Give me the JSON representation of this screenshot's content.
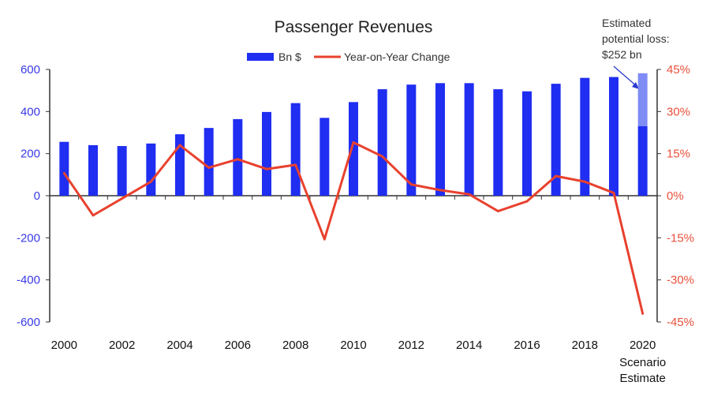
{
  "chart_data": {
    "type": "bar+line",
    "title": "Passenger Revenues",
    "legend_position": "top-center",
    "grid": false,
    "categories": [
      "2000",
      "2001",
      "2002",
      "2003",
      "2004",
      "2005",
      "2006",
      "2007",
      "2008",
      "2009",
      "2010",
      "2011",
      "2012",
      "2013",
      "2014",
      "2015",
      "2016",
      "2017",
      "2018",
      "2019",
      "2020"
    ],
    "x_tick_labels": [
      "2000",
      "2002",
      "2004",
      "2006",
      "2008",
      "2010",
      "2012",
      "2014",
      "2016",
      "2018",
      "2020"
    ],
    "x_extra_label": [
      "Scenario",
      "Estimate"
    ],
    "series": [
      {
        "name": "Bn $",
        "type": "bar",
        "axis": "left",
        "color": "#1f2ef0",
        "values": [
          256,
          240,
          236,
          248,
          292,
          322,
          364,
          398,
          440,
          370,
          445,
          506,
          528,
          535,
          535,
          506,
          496,
          532,
          560,
          564,
          330
        ]
      },
      {
        "name": "Year-on-Year Change",
        "type": "line",
        "axis": "right",
        "color": "#e8412e",
        "values": [
          8,
          -7,
          -1,
          5,
          18,
          10,
          13,
          9.5,
          11,
          -15.5,
          19,
          14,
          4,
          2,
          0.5,
          -5.5,
          -2,
          7,
          5,
          1,
          -42
        ]
      }
    ],
    "estimated_loss": {
      "category": "2020",
      "value": 252,
      "color": "#7f8cf5"
    },
    "annotation": [
      "Estimated",
      "potential loss:",
      "$252 bn"
    ],
    "left_axis": {
      "ylim": [
        -600,
        600
      ],
      "ticks": [
        "600",
        "400",
        "200",
        "0",
        "-200",
        "-400",
        "-600"
      ],
      "color": "#3a3ae6"
    },
    "right_axis": {
      "ylim": [
        -45,
        45
      ],
      "ticks": [
        "45%",
        "30%",
        "15%",
        "0%",
        "-15%",
        "-30%",
        "-45%"
      ],
      "color": "#e8503a"
    }
  }
}
